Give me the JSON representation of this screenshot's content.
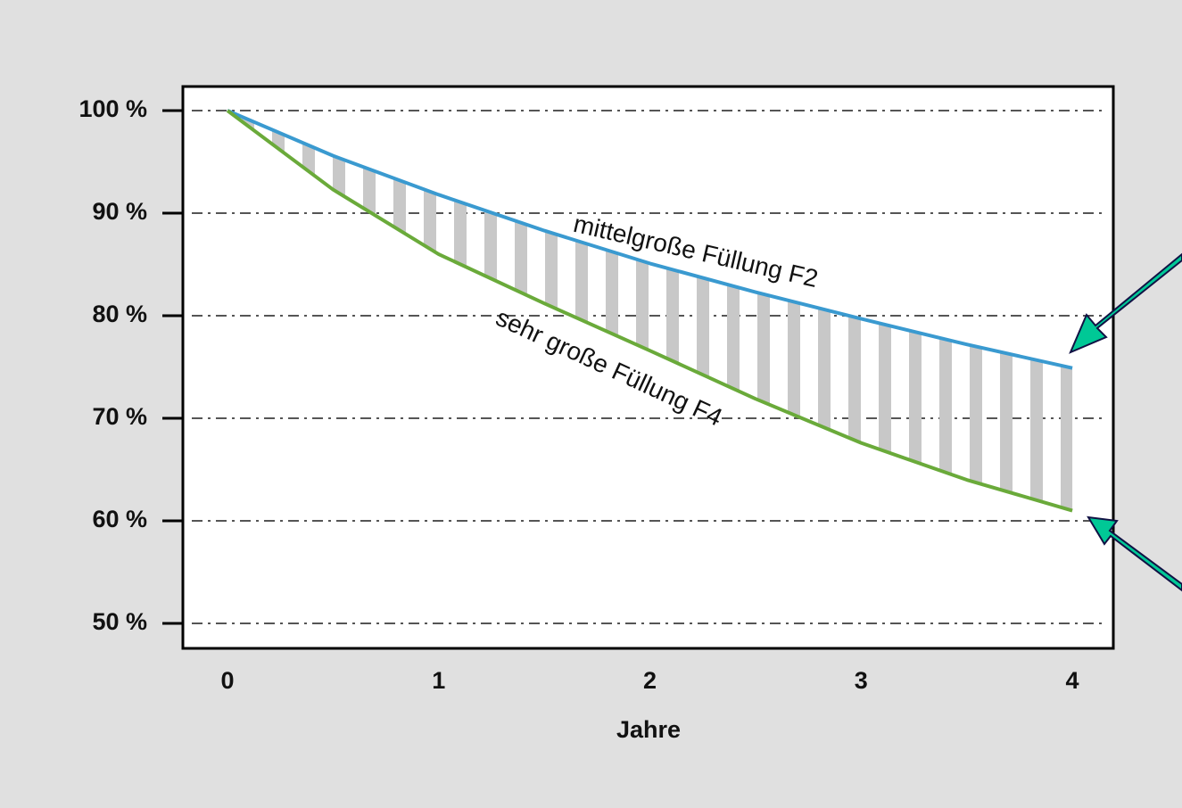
{
  "chart_data": {
    "type": "line",
    "x": [
      0,
      0.5,
      1,
      1.5,
      2,
      2.5,
      3,
      3.5,
      4
    ],
    "series": [
      {
        "name": "mittelgroße Füllung F2",
        "color": "#3a9ad0",
        "values": [
          100,
          95.6,
          91.8,
          88.3,
          85.1,
          82.3,
          79.7,
          77.2,
          74.9
        ]
      },
      {
        "name": "sehr große Füllung F4",
        "color": "#6aaa3a",
        "values": [
          100,
          92.3,
          86.0,
          81.2,
          76.6,
          71.9,
          67.6,
          64.0,
          61.0
        ]
      }
    ],
    "xlabel": "Jahre",
    "xlim": [
      -0.211,
      4.194
    ],
    "xticks": [
      0,
      1,
      2,
      3,
      4
    ],
    "ylim": [
      47.57,
      102.35
    ],
    "yticks": [
      {
        "value": 50,
        "label": "50 %"
      },
      {
        "value": 60,
        "label": "60 %"
      },
      {
        "value": 70,
        "label": "70 %"
      },
      {
        "value": 80,
        "label": "80 %"
      },
      {
        "value": 90,
        "label": "90 %"
      },
      {
        "value": 100,
        "label": "100 %"
      }
    ],
    "grid": true
  }
}
